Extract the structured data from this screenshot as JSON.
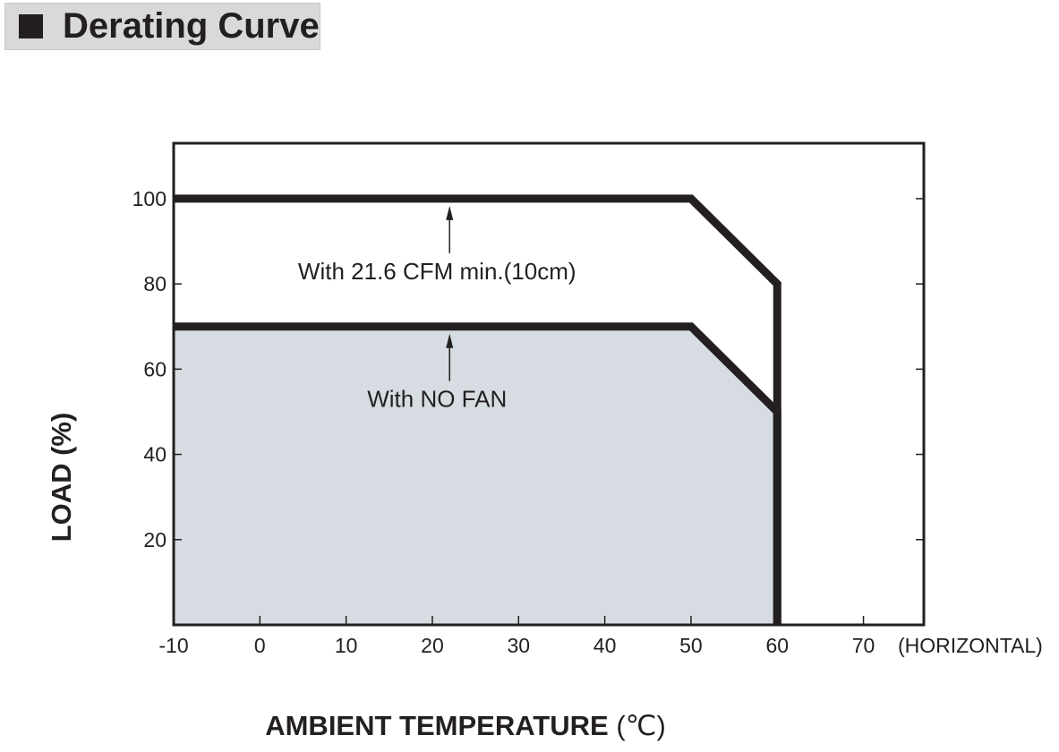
{
  "header": {
    "title": "Derating Curve"
  },
  "chart_data": {
    "type": "line",
    "xlabel": "AMBIENT TEMPERATURE",
    "xlabel_unit": "(℃)",
    "ylabel": "LOAD (%)",
    "x_extra_label": "(HORIZONTAL)",
    "xlim": [
      -10,
      77
    ],
    "ylim": [
      0,
      113
    ],
    "x_ticks": [
      -10,
      0,
      10,
      20,
      30,
      40,
      50,
      60,
      70
    ],
    "y_ticks": [
      20,
      40,
      60,
      80,
      100
    ],
    "grid": false,
    "series": [
      {
        "name": "With 21.6 CFM min.(10cm)",
        "x": [
          -10,
          50,
          60,
          60
        ],
        "y": [
          100,
          100,
          80,
          0
        ],
        "color": "#231f20",
        "fill": false
      },
      {
        "name": "With NO FAN",
        "x": [
          -10,
          50,
          60,
          60
        ],
        "y": [
          70,
          70,
          50,
          0
        ],
        "color": "#231f20",
        "fill": true,
        "fill_color": "#d6dce2"
      }
    ],
    "annotations": [
      {
        "text": "With 21.6 CFM min.(10cm)",
        "x": 22,
        "y": 83,
        "arrow_to": [
          22,
          100
        ]
      },
      {
        "text": "With NO FAN",
        "x": 22,
        "y": 53,
        "arrow_to": [
          22,
          70
        ]
      }
    ]
  }
}
